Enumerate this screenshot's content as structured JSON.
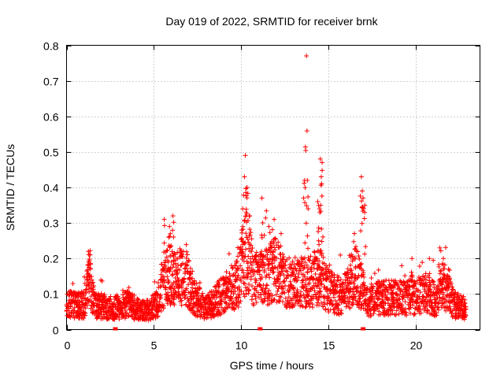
{
  "chart_data": {
    "type": "scatter",
    "title": "Day 019 of 2022, SRMTID for receiver brnk",
    "xlabel": "GPS time / hours",
    "ylabel": "SRMTID / TECUs",
    "xlim": [
      0,
      23.7
    ],
    "ylim": [
      0,
      0.8
    ],
    "xticks": [
      0,
      5,
      10,
      15,
      20
    ],
    "yticks": [
      0,
      0.1,
      0.2,
      0.3,
      0.4,
      0.5,
      0.6,
      0.7,
      0.8
    ],
    "xtick_labels": [
      "0",
      "5",
      "10",
      "15",
      "20"
    ],
    "ytick_labels": [
      "0",
      "0.1",
      "0.2",
      "0.3",
      "0.4",
      "0.5",
      "0.6",
      "0.7",
      "0.8"
    ],
    "grid": true,
    "marker": "+",
    "color": "#ff0000",
    "gap_markers_x": [
      2.8,
      11.1,
      17.0
    ],
    "baseline_profile": [
      [
        0.0,
        0.07
      ],
      [
        1.0,
        0.07
      ],
      [
        1.3,
        0.16
      ],
      [
        1.6,
        0.07
      ],
      [
        2.5,
        0.06
      ],
      [
        3.5,
        0.07
      ],
      [
        4.5,
        0.05
      ],
      [
        5.2,
        0.07
      ],
      [
        5.8,
        0.16
      ],
      [
        6.3,
        0.14
      ],
      [
        6.8,
        0.16
      ],
      [
        7.3,
        0.09
      ],
      [
        8.0,
        0.06
      ],
      [
        9.0,
        0.1
      ],
      [
        9.8,
        0.13
      ],
      [
        10.3,
        0.22
      ],
      [
        10.8,
        0.14
      ],
      [
        11.5,
        0.15
      ],
      [
        12.0,
        0.17
      ],
      [
        12.5,
        0.13
      ],
      [
        13.0,
        0.14
      ],
      [
        13.8,
        0.13
      ],
      [
        14.5,
        0.15
      ],
      [
        15.0,
        0.11
      ],
      [
        15.8,
        0.09
      ],
      [
        16.6,
        0.16
      ],
      [
        17.2,
        0.08
      ],
      [
        18.0,
        0.09
      ],
      [
        19.0,
        0.09
      ],
      [
        20.0,
        0.09
      ],
      [
        20.6,
        0.11
      ],
      [
        21.2,
        0.08
      ],
      [
        21.6,
        0.13
      ],
      [
        22.2,
        0.07
      ],
      [
        22.9,
        0.06
      ]
    ],
    "spikes": [
      [
        1.25,
        0.22
      ],
      [
        1.35,
        0.21
      ],
      [
        5.6,
        0.31
      ],
      [
        5.9,
        0.29
      ],
      [
        6.1,
        0.32
      ],
      [
        6.6,
        0.22
      ],
      [
        10.1,
        0.34
      ],
      [
        10.2,
        0.43
      ],
      [
        10.25,
        0.49
      ],
      [
        10.35,
        0.4
      ],
      [
        10.5,
        0.32
      ],
      [
        11.2,
        0.37
      ],
      [
        11.6,
        0.29
      ],
      [
        11.9,
        0.31
      ],
      [
        12.3,
        0.27
      ],
      [
        13.65,
        0.42
      ],
      [
        13.75,
        0.77
      ],
      [
        13.8,
        0.42
      ],
      [
        13.85,
        0.34
      ],
      [
        14.4,
        0.36
      ],
      [
        14.55,
        0.48
      ],
      [
        14.6,
        0.43
      ],
      [
        14.65,
        0.47
      ],
      [
        14.5,
        0.34
      ],
      [
        14.45,
        0.25
      ],
      [
        16.5,
        0.27
      ],
      [
        16.9,
        0.43
      ],
      [
        16.95,
        0.39
      ],
      [
        17.0,
        0.37
      ],
      [
        17.1,
        0.35
      ],
      [
        19.8,
        0.2
      ],
      [
        20.8,
        0.2
      ],
      [
        21.4,
        0.23
      ],
      [
        21.6,
        0.2
      ],
      [
        21.9,
        0.17
      ]
    ]
  }
}
